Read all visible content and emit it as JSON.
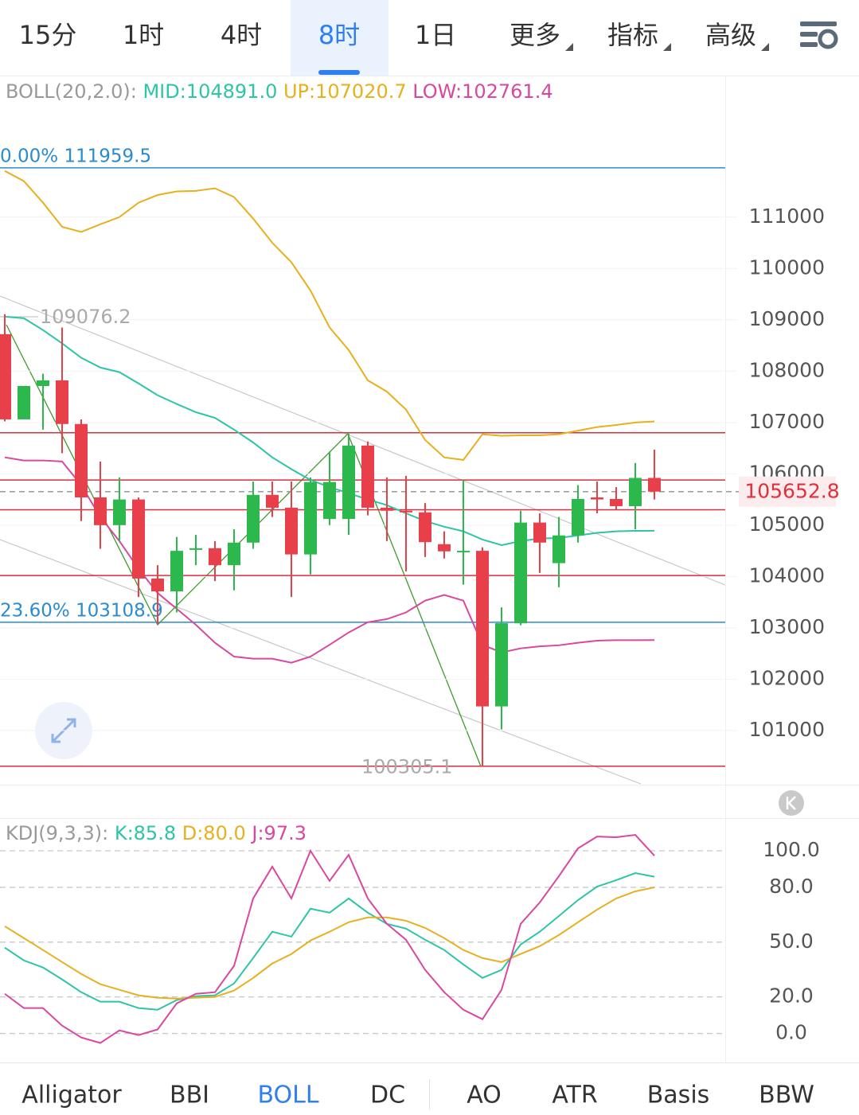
{
  "tabs": {
    "items": [
      "15分",
      "1时",
      "4时",
      "8时",
      "1日"
    ],
    "menus": [
      "更多",
      "指标",
      "高级"
    ],
    "selected": 3
  },
  "price_chart": {
    "type": "candlestick",
    "legend_label": "BOLL(20,2.0):",
    "ylim": [
      99960,
      113740
    ],
    "yticks": [
      101000,
      102000,
      103000,
      104000,
      105000,
      106000,
      107000,
      108000,
      109000,
      110000,
      111000
    ],
    "up_color": "#2db84d",
    "down_color": "#e8404a",
    "candles": {
      "open": [
        108720,
        107060,
        107710,
        107820,
        106970,
        105540,
        105000,
        105500,
        103960,
        103710,
        104550,
        104550,
        104220,
        104660,
        105590,
        105340,
        104430,
        105120,
        105120,
        106550,
        105340,
        105280,
        105250,
        104630,
        104500,
        104500,
        101470,
        103090,
        105050,
        104260,
        104800,
        105540,
        105510,
        105370,
        105920
      ],
      "high": [
        109110,
        106780,
        107950,
        108850,
        107060,
        106240,
        105930,
        105540,
        104220,
        104770,
        104810,
        104690,
        104920,
        105850,
        105850,
        105850,
        105930,
        106430,
        106780,
        106630,
        105930,
        105960,
        105430,
        104880,
        105880,
        104570,
        103400,
        105280,
        105230,
        105160,
        105780,
        105850,
        105740,
        106210,
        106470
      ],
      "low": [
        107020,
        106780,
        106860,
        106400,
        105080,
        104540,
        104690,
        103600,
        103060,
        103300,
        104220,
        103910,
        103730,
        104540,
        105160,
        103600,
        104040,
        105000,
        104810,
        105190,
        104690,
        104100,
        104380,
        104350,
        103840,
        100305.1,
        101020,
        103050,
        104070,
        103790,
        104660,
        105230,
        105310,
        104920,
        105500
      ],
      "close": [
        107060,
        107710,
        107820,
        106970,
        105540,
        105000,
        105500,
        103960,
        103710,
        104500,
        104550,
        104220,
        104660,
        105590,
        105340,
        104430,
        105840,
        105840,
        106550,
        105340,
        105280,
        105250,
        104670,
        104490,
        104500,
        101470,
        103090,
        105050,
        104660,
        104800,
        105510,
        105500,
        105370,
        105920,
        105652.8
      ]
    },
    "bands": [
      {
        "label": "MID:104891.0",
        "color": "#2ec4a6",
        "values": [
          109060,
          109030,
          108800,
          108540,
          108260,
          108070,
          107980,
          107760,
          107530,
          107360,
          107200,
          107090,
          106860,
          106610,
          106320,
          106090,
          105880,
          105740,
          105620,
          105500,
          105390,
          105230,
          105080,
          104970,
          104880,
          104720,
          104610,
          104690,
          104740,
          104750,
          104800,
          104850,
          104880,
          104890,
          104891.0
        ]
      },
      {
        "label": "UP:107020.7",
        "color": "#e6b01e",
        "values": [
          111900,
          111700,
          111280,
          110810,
          110710,
          110860,
          111000,
          111280,
          111430,
          111500,
          111510,
          111560,
          111390,
          110970,
          110500,
          110120,
          109570,
          108850,
          108410,
          107820,
          107600,
          107250,
          106660,
          106320,
          106270,
          106770,
          106740,
          106750,
          106750,
          106770,
          106840,
          106910,
          106950,
          107000,
          107020.7
        ]
      },
      {
        "label": "LOW:102761.4",
        "color": "#d9479f",
        "values": [
          106320,
          106260,
          106260,
          106240,
          105780,
          105160,
          104690,
          104150,
          103680,
          103370,
          103060,
          102710,
          102440,
          102400,
          102400,
          102320,
          102440,
          102670,
          102910,
          103110,
          103170,
          103300,
          103530,
          103640,
          103530,
          102670,
          102520,
          102600,
          102640,
          102660,
          102710,
          102750,
          102760,
          102760,
          102761.4
        ]
      }
    ],
    "fib_levels": [
      {
        "label": "0.00% 111959.5",
        "value": 111959.5
      },
      {
        "label": "23.60% 103108.9",
        "value": 103108.9
      }
    ],
    "fib_color": "#2a8bd0",
    "levels": [
      106800,
      105880,
      105300,
      104020,
      100305.1
    ],
    "level_color": "#d6303c",
    "annotations": [
      109076.2,
      100305.1
    ],
    "last_price": 105652.8
  },
  "kdj_chart": {
    "type": "line",
    "legend_label": "KDJ(9,3,3):",
    "ylim": [
      -15,
      117
    ],
    "yticks": [
      {
        "value": 100,
        "label": "100.0"
      },
      {
        "value": 80,
        "label": "80.0"
      },
      {
        "value": 50,
        "label": "50.0"
      },
      {
        "value": 20,
        "label": "20.0"
      },
      {
        "value": 0,
        "label": "0.0"
      }
    ],
    "series": [
      {
        "label": "K:85.8",
        "color": "#2ec4a6",
        "values": [
          47.0,
          40.0,
          36.1,
          29.6,
          22.6,
          17.4,
          17.4,
          13.9,
          13.0,
          18.3,
          20.4,
          20.9,
          27.4,
          41.3,
          55.7,
          53.0,
          68.3,
          66.1,
          73.9,
          66.1,
          60.0,
          57.4,
          51.3,
          45.7,
          37.8,
          30.4,
          34.8,
          48.7,
          55.7,
          64.3,
          73.0,
          80.4,
          83.9,
          87.8,
          85.8
        ]
      },
      {
        "label": "D:80.0",
        "color": "#e6b01e",
        "values": [
          58.7,
          52.2,
          45.7,
          39.1,
          32.6,
          27.0,
          23.9,
          20.9,
          19.6,
          19.1,
          19.6,
          20.0,
          23.5,
          30.4,
          38.3,
          43.5,
          50.9,
          55.7,
          60.9,
          63.5,
          63.5,
          61.7,
          57.8,
          52.2,
          45.7,
          41.3,
          39.1,
          43.5,
          47.8,
          53.9,
          60.9,
          67.8,
          73.9,
          77.8,
          80.0
        ]
      },
      {
        "label": "J:97.3",
        "color": "#d9479f",
        "values": [
          21.7,
          13.9,
          13.9,
          4.3,
          -2.2,
          -5.2,
          1.7,
          -0.9,
          2.2,
          16.5,
          21.7,
          22.6,
          37.0,
          73.9,
          91.3,
          73.9,
          100.0,
          83.5,
          97.8,
          73.9,
          60.0,
          51.3,
          34.8,
          22.6,
          13.0,
          7.8,
          23.9,
          60.0,
          71.7,
          86.1,
          101.3,
          107.8,
          107.4,
          108.7,
          97.3
        ]
      }
    ]
  },
  "bottom_tabs": {
    "items": [
      "Alligator",
      "BBI",
      "BOLL",
      "DC",
      "AO",
      "ATR",
      "Basis",
      "BBW"
    ],
    "selected": 2
  }
}
